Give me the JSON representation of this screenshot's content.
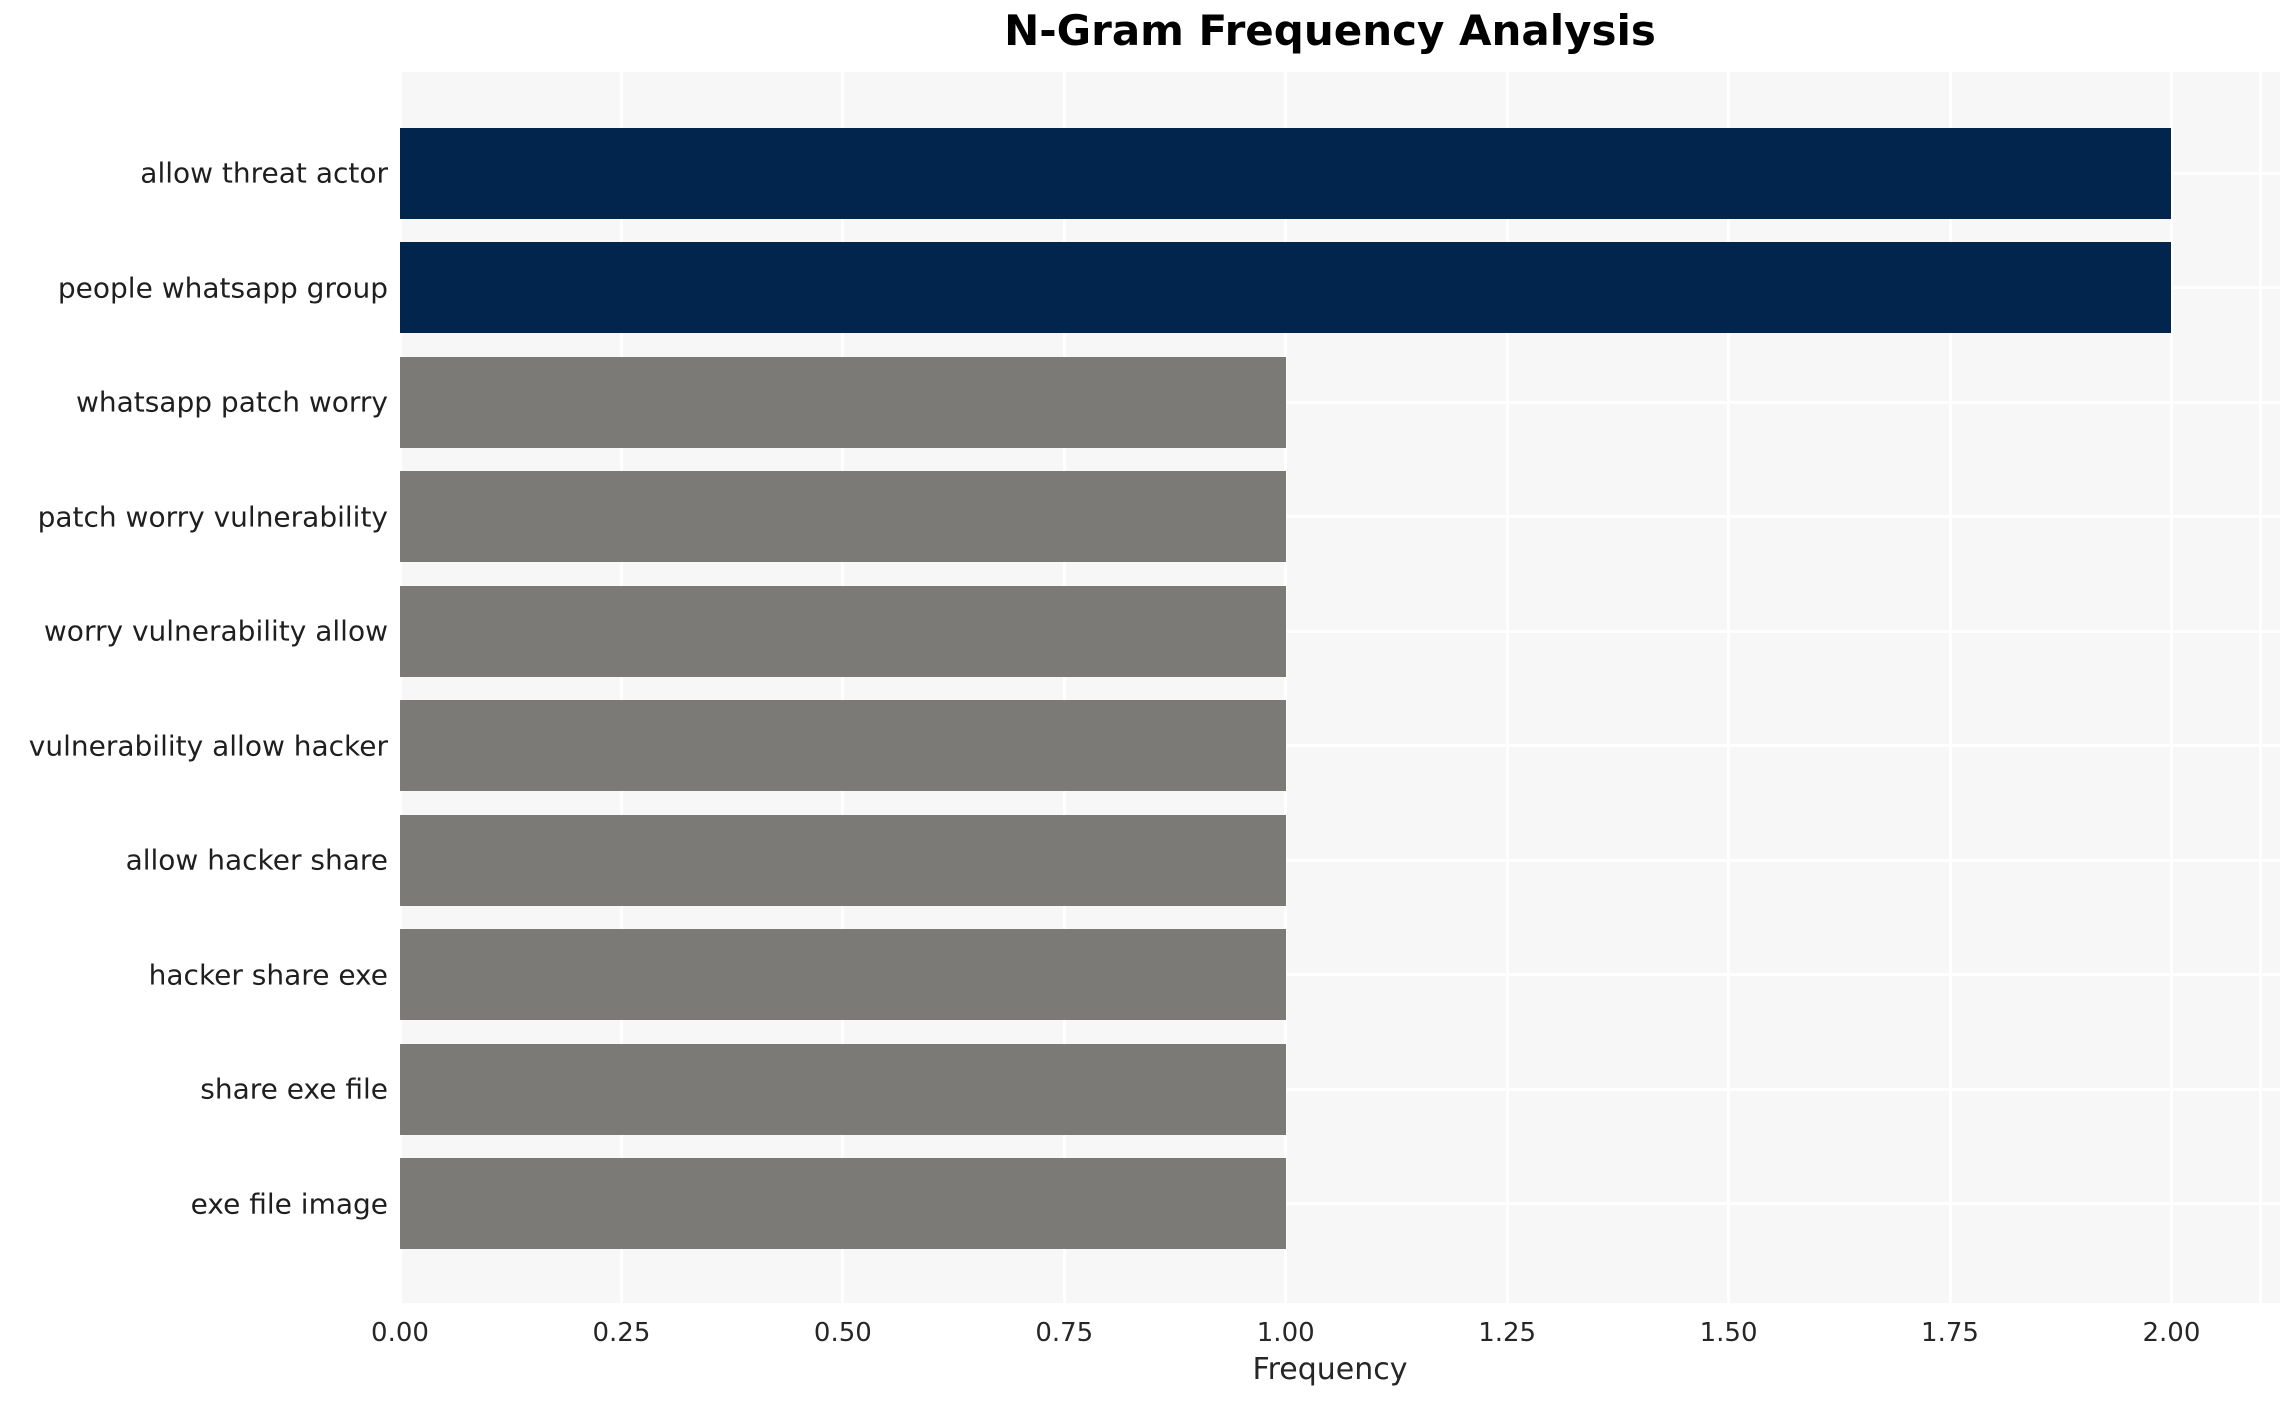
{
  "chart_data": {
    "type": "bar",
    "orientation": "horizontal",
    "title": "N-Gram Frequency Analysis",
    "xlabel": "Frequency",
    "ylabel": "",
    "categories": [
      "allow threat actor",
      "people whatsapp group",
      "whatsapp patch worry",
      "patch worry vulnerability",
      "worry vulnerability allow",
      "vulnerability allow hacker",
      "allow hacker share",
      "hacker share exe",
      "share exe file",
      "exe file image"
    ],
    "values": [
      2,
      2,
      1,
      1,
      1,
      1,
      1,
      1,
      1,
      1
    ],
    "bar_colors": [
      "#02254e",
      "#02254e",
      "#7b7a77",
      "#7b7a77",
      "#7b7a77",
      "#7b7a77",
      "#7b7a77",
      "#7b7a77",
      "#7b7a77",
      "#7b7a77"
    ],
    "xlim": [
      0,
      2.1
    ],
    "xtick_values": [
      0,
      0.25,
      0.5,
      0.75,
      1.0,
      1.25,
      1.5,
      1.75,
      2.0
    ],
    "xtick_labels": [
      "0.00",
      "0.25",
      "0.50",
      "0.75",
      "1.00",
      "1.25",
      "1.50",
      "1.75",
      "2.00"
    ],
    "grid": true,
    "legend": false,
    "colors": {
      "highlight": "#02254e",
      "default": "#7b7a77",
      "plot_bg": "#f7f7f7",
      "grid": "#ffffff",
      "tick_text": "#262626",
      "title_text": "#000000"
    }
  }
}
